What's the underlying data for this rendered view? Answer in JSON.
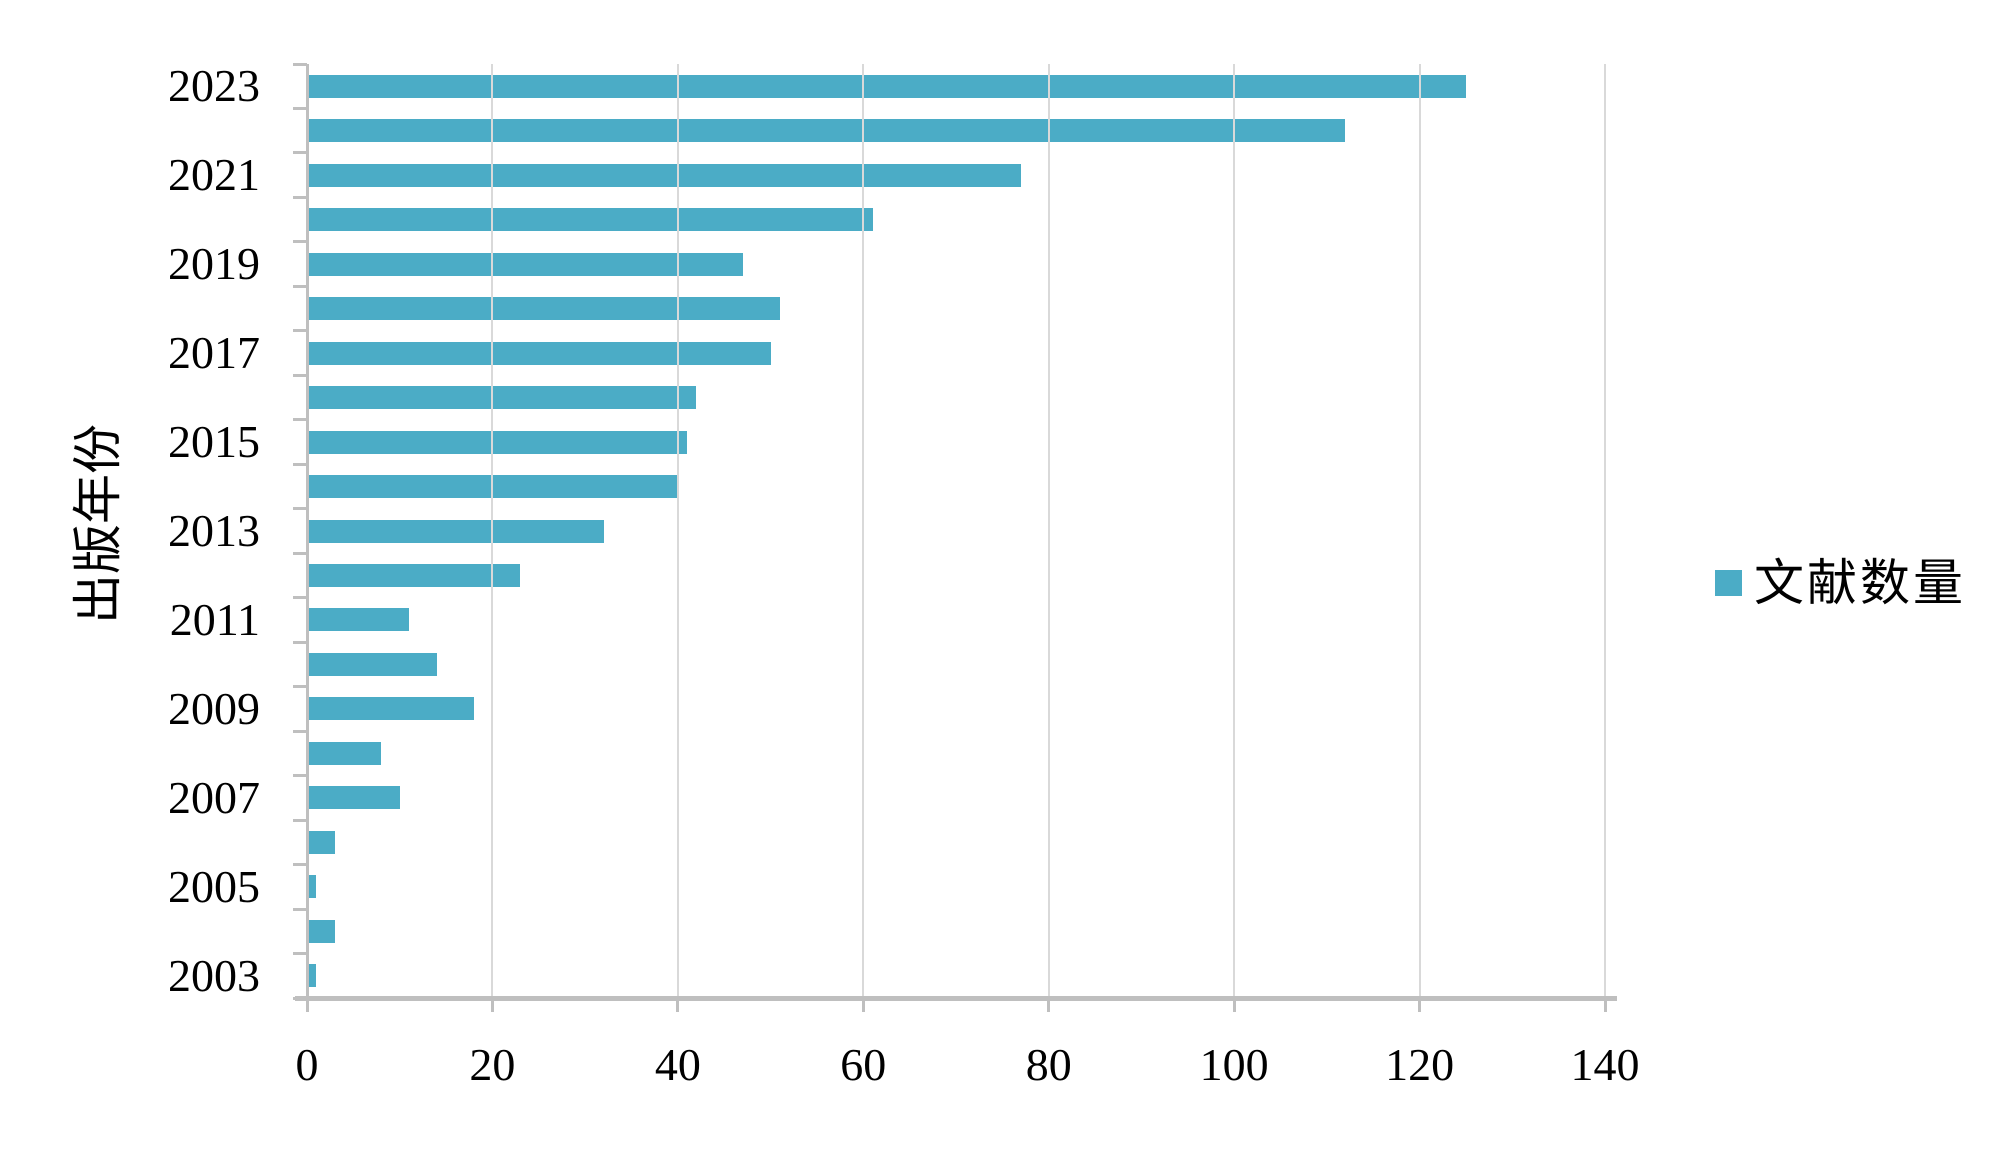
{
  "chart_data": {
    "type": "bar",
    "orientation": "horizontal",
    "title": "",
    "xlabel": "",
    "ylabel": "出版年份",
    "legend": [
      {
        "name": "文献数量",
        "color": "#4BACC6"
      }
    ],
    "legend_position": "right",
    "categories": [
      "2023",
      "2022",
      "2021",
      "2020",
      "2019",
      "2018",
      "2017",
      "2016",
      "2015",
      "2014",
      "2013",
      "2012",
      "2011",
      "2010",
      "2009",
      "2008",
      "2007",
      "2006",
      "2005",
      "2004",
      "2003"
    ],
    "values": [
      125,
      112,
      77,
      61,
      47,
      51,
      50,
      42,
      41,
      40,
      32,
      23,
      11,
      14,
      18,
      8,
      10,
      3,
      1,
      3,
      1
    ],
    "y_axis_labels_shown": [
      "2023",
      "2021",
      "2019",
      "2017",
      "2015",
      "2013",
      "2011",
      "2009",
      "2007",
      "2005",
      "2003"
    ],
    "xlim": [
      0,
      140
    ],
    "xticks": [
      0,
      20,
      40,
      60,
      80,
      100,
      120,
      140
    ],
    "grid": true
  },
  "colors": {
    "bar": "#4BACC6",
    "gridline": "#D9D9D9",
    "axis": "#BFBFBF",
    "text": "#000000",
    "background": "#FFFFFF"
  }
}
